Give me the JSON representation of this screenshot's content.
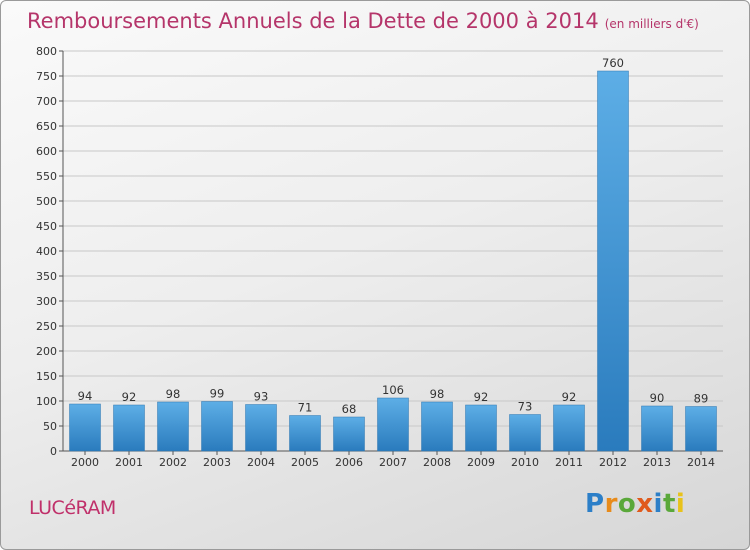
{
  "header": {
    "title": "Remboursements Annuels de la Dette de 2000 à 2014",
    "subtitle": "(en milliers d'€)"
  },
  "footer": {
    "commune": "LUCéRAM",
    "brand_letters": [
      {
        "ch": "P",
        "color": "#2c7fc8"
      },
      {
        "ch": "r",
        "color": "#e88b1a"
      },
      {
        "ch": "o",
        "color": "#5aa83a"
      },
      {
        "ch": "x",
        "color": "#e05a1c"
      },
      {
        "ch": "i",
        "color": "#2c7fc8"
      },
      {
        "ch": "t",
        "color": "#5aa83a"
      },
      {
        "ch": "i",
        "color": "#e8c21a"
      }
    ]
  },
  "colors": {
    "bar_top": "#5daee6",
    "bar_bottom": "#2a7bbd",
    "title": "#b5356a"
  },
  "chart_data": {
    "type": "bar",
    "categories": [
      "2000",
      "2001",
      "2002",
      "2003",
      "2004",
      "2005",
      "2006",
      "2007",
      "2008",
      "2009",
      "2010",
      "2011",
      "2012",
      "2013",
      "2014"
    ],
    "values": [
      94,
      92,
      98,
      99,
      93,
      71,
      68,
      106,
      98,
      92,
      73,
      92,
      760,
      90,
      89
    ],
    "ylim": [
      0,
      800
    ],
    "yticks": [
      0,
      50,
      100,
      150,
      200,
      250,
      300,
      350,
      400,
      450,
      500,
      550,
      600,
      650,
      700,
      750,
      800
    ],
    "grid": true
  }
}
